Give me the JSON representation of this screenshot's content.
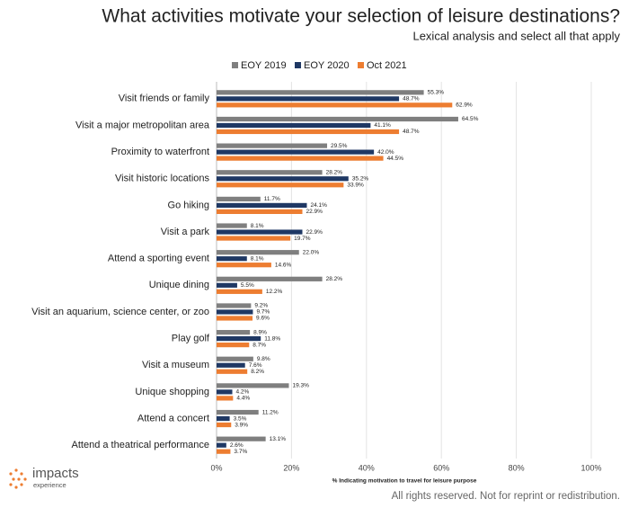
{
  "chart_data": {
    "type": "bar",
    "orientation": "horizontal",
    "title": "What activities motivate your selection of leisure destinations?",
    "subtitle": "Lexical analysis and select all that apply",
    "x_label": "% Indicating motivation to travel for leisure purpose",
    "categories": [
      "Visit friends or family",
      "Visit a major metropolitan area",
      "Proximity to waterfront",
      "Visit historic locations",
      "Go hiking",
      "Visit a park",
      "Attend a sporting event",
      "Unique dining",
      "Visit an aquarium, science center, or zoo",
      "Play golf",
      "Visit a museum",
      "Unique shopping",
      "Attend a concert",
      "Attend a theatrical performance"
    ],
    "series": [
      {
        "name": "EOY 2019",
        "color": "#7f7f7f",
        "values": [
          55.3,
          64.5,
          29.5,
          28.2,
          11.7,
          8.1,
          22.0,
          28.2,
          9.2,
          8.9,
          9.8,
          19.3,
          11.2,
          13.1
        ],
        "value_labels": [
          "55.3%",
          "64.5%",
          "29.5%",
          "28.2%",
          "11.7%",
          "8.1%",
          "22.0%",
          "28.2%",
          "9.2%",
          "8.9%",
          "9.8%",
          "19.3%",
          "11.2%",
          "13.1%"
        ]
      },
      {
        "name": "EOY 2020",
        "color": "#1f3864",
        "values": [
          48.7,
          41.1,
          42.0,
          35.2,
          24.1,
          22.9,
          8.1,
          5.5,
          9.7,
          11.8,
          7.6,
          4.2,
          3.5,
          2.6
        ],
        "value_labels": [
          "48.7%",
          "41.1%",
          "42.0%",
          "35.2%",
          "24.1%",
          "22.9%",
          "8.1%",
          "5.5%",
          "9.7%",
          "11.8%",
          "7.6%",
          "4.2%",
          "3.5%",
          "2.6%"
        ]
      },
      {
        "name": "Oct 2021",
        "color": "#ed7d31",
        "values": [
          62.9,
          48.7,
          44.5,
          33.9,
          22.9,
          19.7,
          14.6,
          12.2,
          9.6,
          8.7,
          8.2,
          4.4,
          3.9,
          3.7
        ],
        "value_labels": [
          "62.9%",
          "48.7%",
          "44.5%",
          "33.9%",
          "22.9%",
          "19.7%",
          "14.6%",
          "12.2%",
          "9.6%",
          "8.7%",
          "8.2%",
          "4.4%",
          "3.9%",
          "3.7%"
        ]
      }
    ],
    "xlim": [
      0,
      100
    ],
    "xticks": [
      {
        "value": 0,
        "label": "0%"
      },
      {
        "value": 20,
        "label": "20%"
      },
      {
        "value": 40,
        "label": "40%"
      },
      {
        "value": 60,
        "label": "60%"
      },
      {
        "value": 80,
        "label": "80%"
      },
      {
        "value": 100,
        "label": "100%"
      }
    ],
    "grid": true,
    "legend": "top"
  },
  "branding": {
    "name": "impacts",
    "tagline": "experience"
  },
  "footer": "All rights reserved. Not for reprint or redistribution."
}
